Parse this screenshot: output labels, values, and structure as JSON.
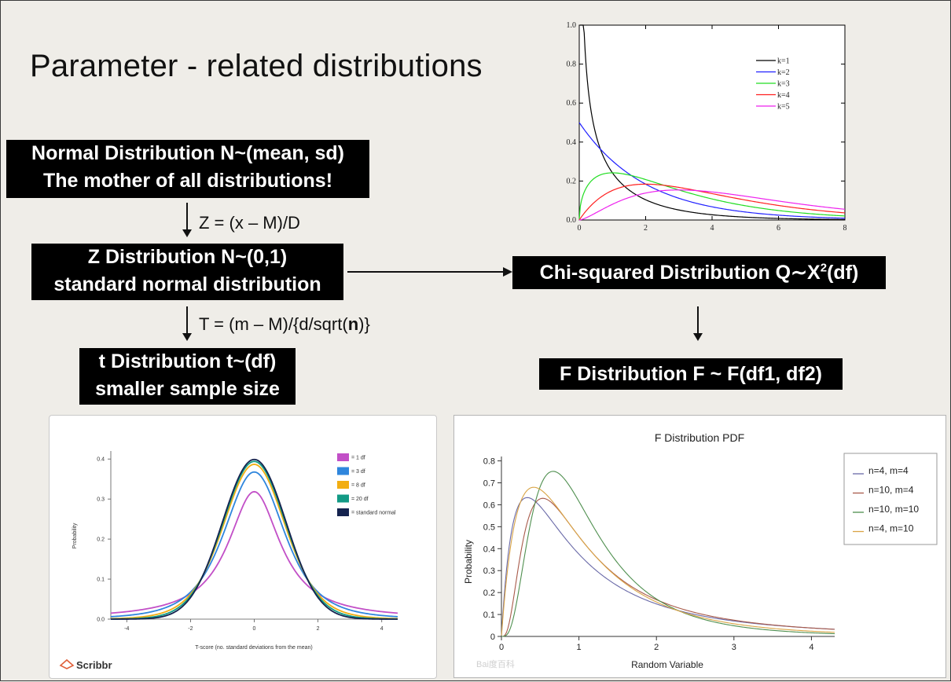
{
  "title": "Parameter - related distributions",
  "boxes": {
    "normal": {
      "line1": "Normal Distribution N~(mean, sd)",
      "line2": "The mother of all distributions!"
    },
    "z": {
      "line1": "Z Distribution N~(0,1)",
      "line2": "standard normal distribution"
    },
    "t": {
      "line1": "t Distribution t~(df)",
      "line2": "smaller sample size"
    },
    "chi": {
      "label_pre": "Chi-squared Distribution Q∼X",
      "label_sup": "2",
      "label_post": "(df)"
    },
    "f": {
      "label": "F Distribution F ~ F(df1, df2)"
    }
  },
  "arrows": {
    "z_formula": "Z = (x – M)/D",
    "t_formula_pre": "T = (m – M)/{d/sqrt(",
    "t_formula_bold": "n",
    "t_formula_post": ")}"
  },
  "chart_data": [
    {
      "id": "chi_squared",
      "type": "line",
      "xlim": [
        0,
        8
      ],
      "ylim": [
        0,
        1.0
      ],
      "xticks": [
        "0",
        "2",
        "4",
        "6",
        "8"
      ],
      "yticks": [
        "0.0",
        "0.2",
        "0.4",
        "0.6",
        "0.8",
        "1.0"
      ],
      "legend_position": "top-right",
      "series": [
        {
          "name": "k=1",
          "color": "#000000",
          "k": 1
        },
        {
          "name": "k=2",
          "color": "#2020ff",
          "k": 2
        },
        {
          "name": "k=3",
          "color": "#22dd22",
          "k": 3
        },
        {
          "name": "k=4",
          "color": "#ff2020",
          "k": 4
        },
        {
          "name": "k=5",
          "color": "#ee22ee",
          "k": 5
        }
      ]
    },
    {
      "id": "t_distribution",
      "type": "line",
      "xlim": [
        -4.5,
        4.5
      ],
      "ylim": [
        0,
        0.42
      ],
      "xticks": [
        "-4",
        "-2",
        "0",
        "2",
        "4"
      ],
      "yticks": [
        "0.0",
        "0.1",
        "0.2",
        "0.3",
        "0.4"
      ],
      "ylabel": "Probability",
      "xlabel": "T-score (no. standard deviations from the mean)",
      "legend_position": "top-right",
      "brand": "Scribbr",
      "series": [
        {
          "name": "= 1 df",
          "color": "#c24fc7",
          "df": 1
        },
        {
          "name": "= 3 df",
          "color": "#2f86dd",
          "df": 3
        },
        {
          "name": "= 8 df",
          "color": "#f2ae12",
          "df": 8
        },
        {
          "name": "= 20 df",
          "color": "#129a85",
          "df": 20
        },
        {
          "name": "= standard normal",
          "color": "#15234f",
          "df": "normal"
        }
      ]
    },
    {
      "id": "f_distribution",
      "type": "line",
      "title": "F Distribution PDF",
      "xlabel": "Random Variable",
      "ylabel": "Probability",
      "xlim": [
        0,
        4.3
      ],
      "ylim": [
        0,
        0.82
      ],
      "xticks": [
        "0",
        "1",
        "2",
        "3",
        "4"
      ],
      "yticks": [
        "0",
        "0.1",
        "0.2",
        "0.3",
        "0.4",
        "0.5",
        "0.6",
        "0.7",
        "0.8"
      ],
      "legend_position": "right",
      "watermark": "Bai度百科",
      "series": [
        {
          "name": "n=4, m=4",
          "color": "#6a6aa8",
          "n": 4,
          "m": 4
        },
        {
          "name": "n=10, m=4",
          "color": "#a85a4a",
          "n": 10,
          "m": 4
        },
        {
          "name": "n=10, m=10",
          "color": "#4f8f4f",
          "n": 10,
          "m": 10
        },
        {
          "name": "n=4, m=10",
          "color": "#d9a445",
          "n": 4,
          "m": 10
        }
      ]
    }
  ]
}
